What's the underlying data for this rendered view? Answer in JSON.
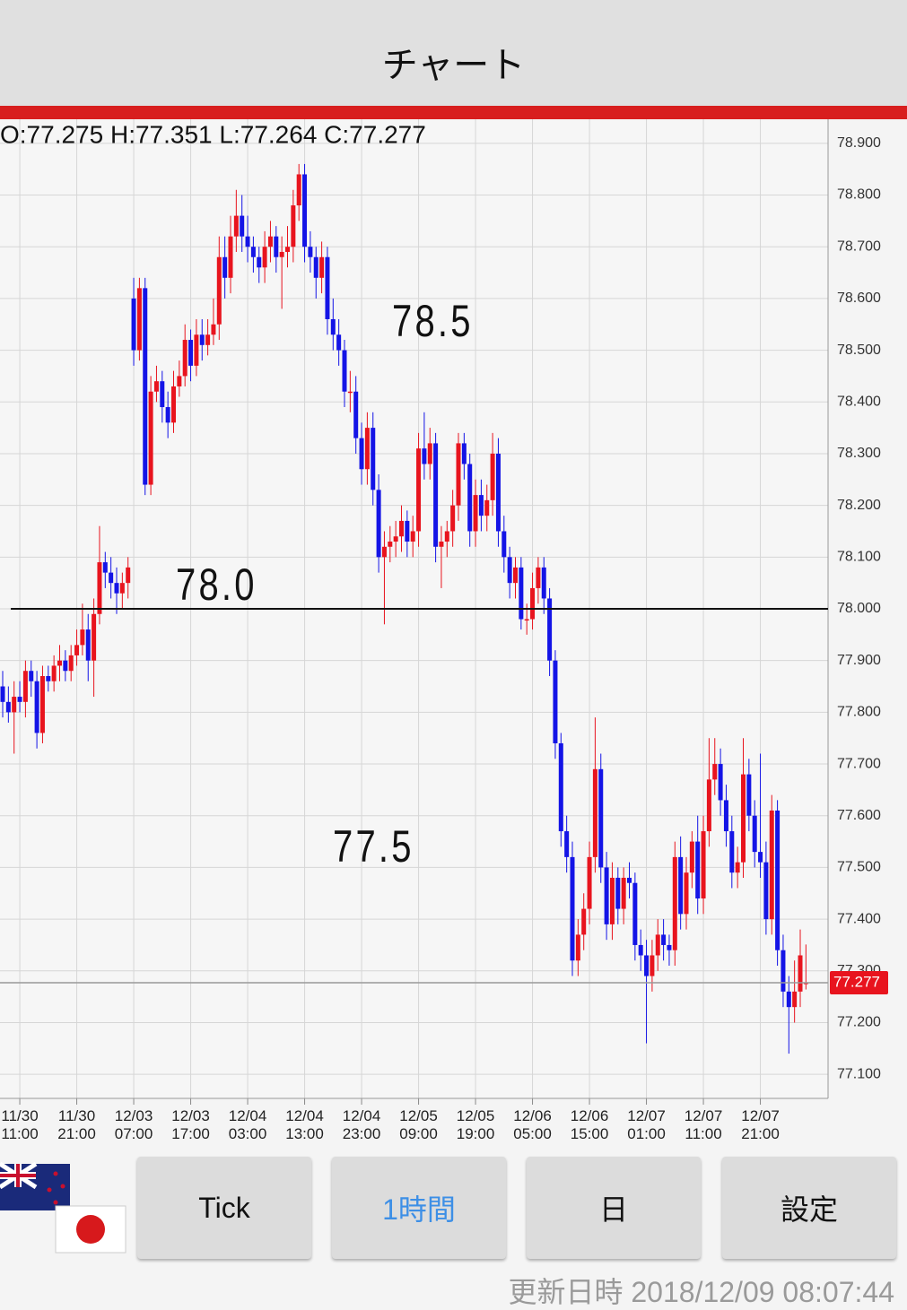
{
  "header": {
    "title": "チャート"
  },
  "chart_data": {
    "type": "candlestick",
    "info": "O:77.275 H:77.351 L:77.264 C:77.277",
    "categories": [
      null,
      null,
      null,
      "11/30\n11:00",
      null,
      null,
      null,
      null,
      null,
      null,
      null,
      null,
      null,
      "11/30\n21:00",
      null,
      null,
      null,
      null,
      null,
      null,
      null,
      null,
      null,
      "12/03\n07:00",
      null,
      null,
      null,
      null,
      null,
      null,
      null,
      null,
      null,
      "12/03\n17:00",
      null,
      null,
      null,
      null,
      null,
      null,
      null,
      null,
      null,
      "12/04\n03:00",
      null,
      null,
      null,
      null,
      null,
      null,
      null,
      null,
      null,
      "12/04\n13:00",
      null,
      null,
      null,
      null,
      null,
      null,
      null,
      null,
      null,
      "12/04\n23:00",
      null,
      null,
      null,
      null,
      null,
      null,
      null,
      null,
      null,
      "12/05\n09:00",
      null,
      null,
      null,
      null,
      null,
      null,
      null,
      null,
      null,
      "12/05\n19:00",
      null,
      null,
      null,
      null,
      null,
      null,
      null,
      null,
      null,
      "12/06\n05:00",
      null,
      null,
      null,
      null,
      null,
      null,
      null,
      null,
      null,
      "12/06\n15:00",
      null,
      null,
      null,
      null,
      null,
      null,
      null,
      null,
      null,
      "12/07\n01:00",
      null,
      null,
      null,
      null,
      null,
      null,
      null,
      null,
      null,
      "12/07\n11:00",
      null,
      null,
      null,
      null,
      null,
      null,
      null,
      null,
      null,
      "12/07\n21:00",
      null,
      null,
      null,
      null,
      null,
      null,
      null,
      null
    ],
    "series": [
      {
        "open": [
          77.85,
          77.82,
          77.8,
          77.83,
          77.82,
          77.88,
          77.86,
          77.76,
          77.87,
          77.86,
          77.89,
          77.9,
          77.88,
          77.91,
          77.93,
          77.96,
          77.9,
          77.99,
          78.09,
          78.07,
          78.05,
          78.03,
          78.05,
          78.6,
          78.5,
          78.62,
          78.24,
          78.42,
          78.44,
          78.39,
          78.36,
          78.43,
          78.45,
          78.52,
          78.47,
          78.53,
          78.51,
          78.53,
          78.55,
          78.68,
          78.64,
          78.72,
          78.76,
          78.72,
          78.7,
          78.68,
          78.66,
          78.7,
          78.72,
          78.68,
          78.69,
          78.7,
          78.78,
          78.84,
          78.7,
          78.68,
          78.64,
          78.68,
          78.56,
          78.53,
          78.5,
          78.42,
          78.42,
          78.33,
          78.27,
          78.35,
          78.23,
          78.1,
          78.12,
          78.13,
          78.14,
          78.17,
          78.13,
          78.15,
          78.31,
          78.28,
          78.32,
          78.12,
          78.13,
          78.15,
          78.2,
          78.32,
          78.28,
          78.15,
          78.22,
          78.18,
          78.21,
          78.3,
          78.15,
          78.1,
          78.05,
          78.08,
          77.98,
          77.98,
          78.04,
          78.08,
          78.02,
          77.9,
          77.74,
          77.57,
          77.52,
          77.32,
          77.37,
          77.42,
          77.52,
          77.69,
          77.5,
          77.39,
          77.48,
          77.42,
          77.48,
          77.47,
          77.35,
          77.33,
          77.29,
          77.33,
          77.37,
          77.35,
          77.34,
          77.52,
          77.41,
          77.49,
          77.55,
          77.44,
          77.57,
          77.67,
          77.7,
          77.63,
          77.57,
          77.49,
          77.51,
          77.68,
          77.6,
          77.53,
          77.51,
          77.4,
          77.61,
          77.34,
          77.26,
          77.23,
          77.26,
          77.275
        ],
        "high": [
          77.88,
          77.85,
          77.86,
          77.86,
          77.9,
          77.9,
          77.88,
          77.89,
          77.89,
          77.91,
          77.93,
          77.92,
          77.93,
          77.96,
          78.01,
          77.99,
          78.02,
          78.16,
          78.11,
          78.1,
          78.08,
          78.07,
          78.1,
          78.64,
          78.64,
          78.64,
          78.45,
          78.47,
          78.46,
          78.42,
          78.46,
          78.48,
          78.55,
          78.54,
          78.56,
          78.56,
          78.56,
          78.6,
          78.72,
          78.72,
          78.76,
          78.81,
          78.8,
          78.76,
          78.72,
          78.7,
          78.73,
          78.75,
          78.74,
          78.72,
          78.74,
          78.81,
          78.86,
          78.86,
          78.73,
          78.7,
          78.71,
          78.7,
          78.6,
          78.56,
          78.52,
          78.46,
          78.45,
          78.36,
          78.38,
          78.38,
          78.26,
          78.15,
          78.16,
          78.17,
          78.2,
          78.19,
          78.18,
          78.34,
          78.38,
          78.35,
          78.34,
          78.16,
          78.17,
          78.23,
          78.34,
          78.34,
          78.3,
          78.25,
          78.25,
          78.24,
          78.34,
          78.33,
          78.18,
          78.12,
          78.1,
          78.1,
          78.01,
          78.07,
          78.1,
          78.1,
          78.04,
          77.92,
          77.76,
          77.6,
          77.55,
          77.4,
          77.45,
          77.55,
          77.79,
          77.72,
          77.53,
          77.51,
          77.5,
          77.5,
          77.51,
          77.49,
          77.38,
          77.36,
          77.36,
          77.4,
          77.4,
          77.37,
          77.55,
          77.56,
          77.52,
          77.57,
          77.6,
          77.6,
          77.75,
          77.75,
          77.73,
          77.66,
          77.6,
          77.54,
          77.75,
          77.71,
          77.63,
          77.72,
          77.55,
          77.64,
          77.63,
          77.37,
          77.29,
          77.32,
          77.38,
          77.351
        ],
        "low": [
          77.79,
          77.78,
          77.72,
          77.8,
          77.79,
          77.83,
          77.73,
          77.74,
          77.84,
          77.84,
          77.86,
          77.86,
          77.86,
          77.89,
          77.91,
          77.86,
          77.83,
          77.97,
          78.04,
          78.02,
          77.99,
          78.0,
          78.02,
          78.47,
          78.48,
          78.22,
          78.22,
          78.4,
          78.36,
          78.33,
          78.34,
          78.41,
          78.43,
          78.44,
          78.45,
          78.48,
          78.49,
          78.51,
          78.52,
          78.6,
          78.61,
          78.69,
          78.69,
          78.67,
          78.65,
          78.63,
          78.63,
          78.67,
          78.65,
          78.58,
          78.66,
          78.67,
          78.75,
          78.67,
          78.65,
          78.6,
          78.61,
          78.53,
          78.5,
          78.47,
          78.39,
          78.38,
          78.3,
          78.24,
          78.24,
          78.2,
          78.07,
          77.97,
          78.09,
          78.1,
          78.11,
          78.1,
          78.1,
          78.12,
          78.25,
          78.25,
          78.09,
          78.04,
          78.1,
          78.12,
          78.17,
          78.25,
          78.12,
          78.12,
          78.15,
          78.15,
          78.18,
          78.12,
          78.07,
          78.02,
          78.02,
          77.96,
          77.95,
          77.96,
          78.01,
          77.99,
          77.87,
          77.71,
          77.54,
          77.49,
          77.29,
          77.29,
          77.34,
          77.39,
          77.49,
          77.47,
          77.36,
          77.36,
          77.39,
          77.39,
          77.44,
          77.32,
          77.3,
          77.16,
          77.26,
          77.3,
          77.32,
          77.31,
          77.31,
          77.38,
          77.38,
          77.46,
          77.41,
          77.41,
          77.54,
          77.64,
          77.6,
          77.54,
          77.46,
          77.46,
          77.48,
          77.57,
          77.5,
          77.48,
          77.37,
          77.37,
          77.31,
          77.23,
          77.14,
          77.2,
          77.23,
          77.264
        ],
        "close": [
          77.82,
          77.8,
          77.83,
          77.82,
          77.88,
          77.86,
          77.76,
          77.87,
          77.86,
          77.89,
          77.9,
          77.88,
          77.91,
          77.93,
          77.96,
          77.9,
          77.99,
          78.09,
          78.07,
          78.05,
          78.03,
          78.05,
          78.08,
          78.5,
          78.62,
          78.24,
          78.42,
          78.44,
          78.39,
          78.36,
          78.43,
          78.45,
          78.52,
          78.47,
          78.53,
          78.51,
          78.53,
          78.55,
          78.68,
          78.64,
          78.72,
          78.76,
          78.72,
          78.7,
          78.68,
          78.66,
          78.7,
          78.72,
          78.68,
          78.69,
          78.7,
          78.78,
          78.84,
          78.7,
          78.68,
          78.64,
          78.68,
          78.56,
          78.53,
          78.5,
          78.42,
          78.42,
          78.33,
          78.27,
          78.35,
          78.23,
          78.1,
          78.12,
          78.13,
          78.14,
          78.17,
          78.13,
          78.15,
          78.31,
          78.28,
          78.32,
          78.12,
          78.13,
          78.15,
          78.2,
          78.32,
          78.28,
          78.15,
          78.22,
          78.18,
          78.21,
          78.3,
          78.15,
          78.1,
          78.05,
          78.08,
          77.98,
          77.98,
          78.04,
          78.08,
          78.02,
          77.9,
          77.74,
          77.57,
          77.52,
          77.32,
          77.37,
          77.42,
          77.52,
          77.69,
          77.5,
          77.39,
          77.48,
          77.42,
          77.48,
          77.47,
          77.35,
          77.33,
          77.29,
          77.33,
          77.37,
          77.35,
          77.34,
          77.52,
          77.41,
          77.49,
          77.55,
          77.44,
          77.57,
          77.67,
          77.7,
          77.63,
          77.57,
          77.49,
          77.51,
          77.68,
          77.6,
          77.53,
          77.51,
          77.4,
          77.61,
          77.34,
          77.26,
          77.23,
          77.26,
          77.33,
          77.277
        ]
      }
    ],
    "up_color": "#e8141e",
    "down_color": "#1414e6",
    "ylim": [
      77.05,
      78.95
    ],
    "yticks": [
      {
        "value": 77.1,
        "label": "77.100"
      },
      {
        "value": 77.2,
        "label": "77.200"
      },
      {
        "value": 77.3,
        "label": "77.300"
      },
      {
        "value": 77.4,
        "label": "77.400"
      },
      {
        "value": 77.5,
        "label": "77.500"
      },
      {
        "value": 77.6,
        "label": "77.600"
      },
      {
        "value": 77.7,
        "label": "77.700"
      },
      {
        "value": 77.8,
        "label": "77.800"
      },
      {
        "value": 77.9,
        "label": "77.900"
      },
      {
        "value": 78.0,
        "label": "78.000"
      },
      {
        "value": 78.1,
        "label": "78.100"
      },
      {
        "value": 78.2,
        "label": "78.200"
      },
      {
        "value": 78.3,
        "label": "78.300"
      },
      {
        "value": 78.4,
        "label": "78.400"
      },
      {
        "value": 78.5,
        "label": "78.500"
      },
      {
        "value": 78.6,
        "label": "78.600"
      },
      {
        "value": 78.7,
        "label": "78.700"
      },
      {
        "value": 78.8,
        "label": "78.800"
      },
      {
        "value": 78.9,
        "label": "78.900"
      }
    ],
    "grid": true,
    "reference_line": 78.0,
    "last_price": {
      "value": 77.277,
      "label": "77.277"
    },
    "annotations": [
      "78.5",
      "78.0",
      "77.5"
    ]
  },
  "buttons": [
    "Tick",
    "1時間",
    "日",
    "設定"
  ],
  "footer": {
    "updated": "更新日時 2018/12/09 08:07:44"
  }
}
